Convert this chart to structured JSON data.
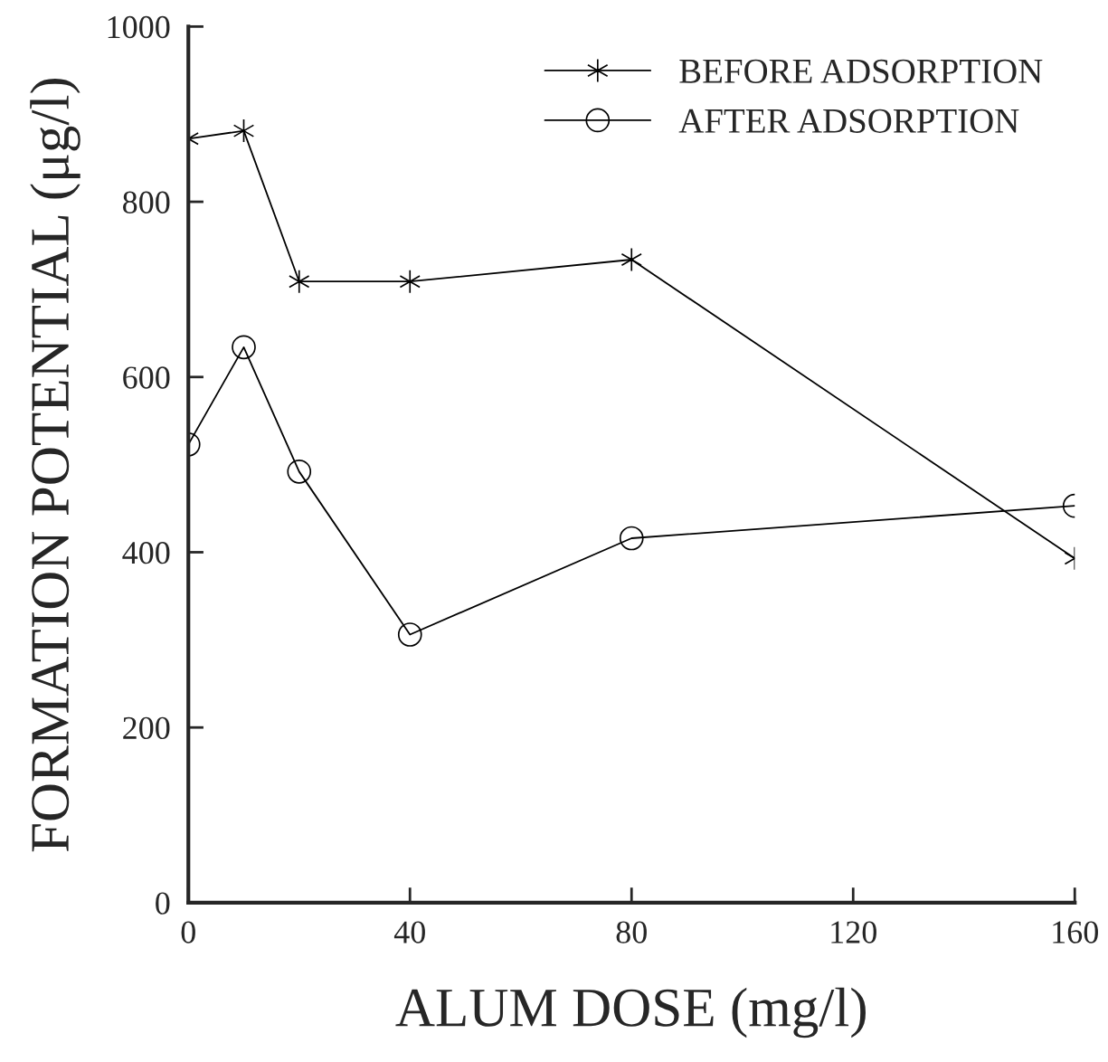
{
  "chart_data": {
    "type": "line",
    "xlabel": "ALUM DOSE (mg/l)",
    "ylabel": "FORMATION POTENTIAL (μg/l)",
    "x": [
      0,
      10,
      20,
      40,
      80,
      160
    ],
    "series": [
      {
        "name": "BEFORE ADSORPTION",
        "color": "#000000",
        "marker": "cross",
        "values": [
          872,
          881,
          709,
          709,
          734,
          393
        ]
      },
      {
        "name": "AFTER ADSORPTION",
        "color": "#000000",
        "marker": "circle",
        "values": [
          523,
          634,
          492,
          306,
          416,
          453
        ]
      }
    ],
    "xlim": [
      0,
      160
    ],
    "ylim": [
      0,
      1000
    ],
    "xticks": [
      0,
      40,
      80,
      120,
      160
    ],
    "yticks": [
      0,
      200,
      400,
      600,
      800,
      1000
    ],
    "grid": false,
    "legend": "top right",
    "line_style": "solid"
  }
}
